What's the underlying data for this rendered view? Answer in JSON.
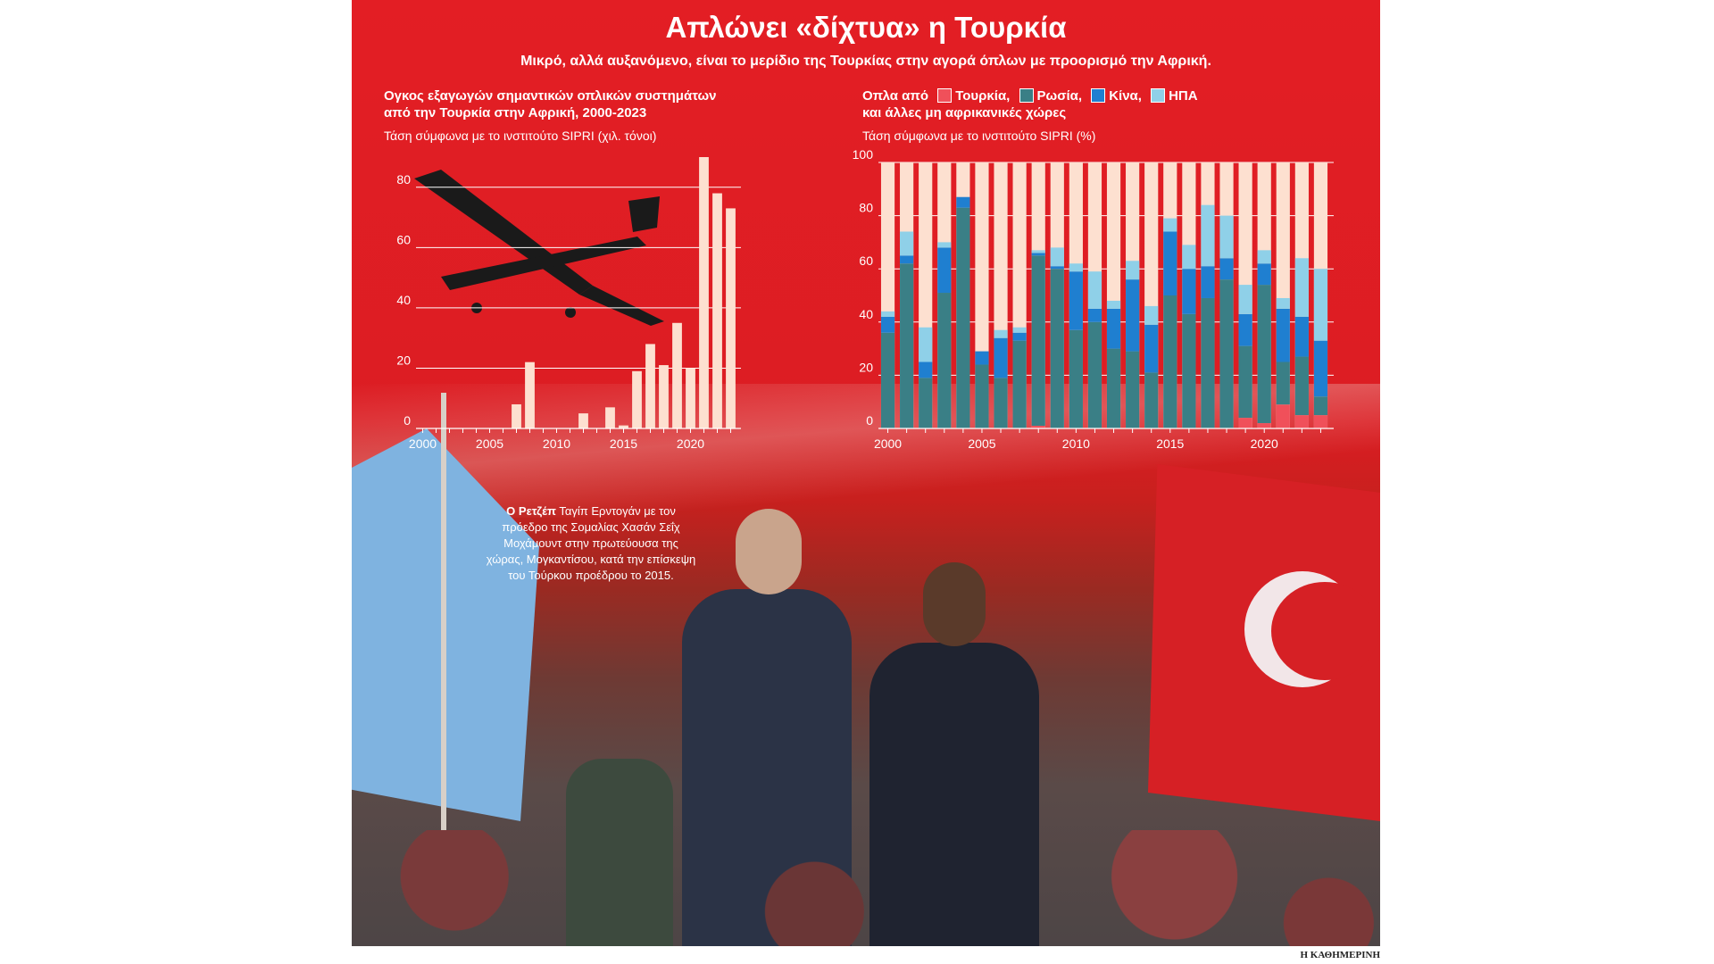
{
  "header": {
    "title": "Απλώνει «δίχτυα» η Τουρκία",
    "subtitle": "Μικρό, αλλά αυξανόμενο, είναι το μερίδιο της Τουρκίας στην αγορά όπλων με προορισμό την Αφρική."
  },
  "left_chart_text": {
    "title_line1": "Ογκος εξαγωγών σημαντικών οπλικών συστημάτων",
    "title_line2": "από την Τουρκία στην Αφρική, 2000-2023",
    "note": "Τάση σύμφωνα με το ινστιτούτο SIPRI (χιλ. τόνοι)"
  },
  "right_chart_text": {
    "title_prefix": "Οπλα από",
    "title_line2": "και άλλες μη αφρικανικές χώρες",
    "note": "Τάση σύμφωνα με το ινστιτούτο SIPRI (%)",
    "legend": [
      {
        "label": "Τουρκία,",
        "color": "#f0505a"
      },
      {
        "label": "Ρωσία,",
        "color": "#3a7f86"
      },
      {
        "label": "Κίνα,",
        "color": "#1f7fd0"
      },
      {
        "label": "ΗΠΑ",
        "color": "#8fd0e8"
      }
    ]
  },
  "caption": {
    "bold": "Ο Ρετζέπ",
    "rest": "Ταγίπ Ερντογάν με τον πρόεδρο της Σομαλίας Χασάν Σεΐχ Μοχάμουντ στην πρωτεύουσα της χώρας, Μογκαντίσου, κατά την επίσκεψη του Τούρκου προέδρου το 2015."
  },
  "footer": {
    "source": "Η ΚΑΘΗΜΕΡΙΝΗ"
  },
  "chart_data": [
    {
      "type": "bar",
      "xlabel": "",
      "ylabel": "",
      "xlim": [
        2000,
        2023
      ],
      "ylim": [
        0,
        90
      ],
      "yticks": [
        0,
        20,
        40,
        60,
        80
      ],
      "xticks": [
        2000,
        2005,
        2010,
        2015,
        2020
      ],
      "grid": true,
      "x": [
        2000,
        2001,
        2002,
        2003,
        2004,
        2005,
        2006,
        2007,
        2008,
        2009,
        2010,
        2011,
        2012,
        2013,
        2014,
        2015,
        2016,
        2017,
        2018,
        2019,
        2020,
        2021,
        2022,
        2023
      ],
      "values": [
        0,
        0,
        0,
        0,
        0,
        0,
        0,
        8,
        22,
        0,
        0,
        0,
        5,
        0,
        7,
        1,
        19,
        28,
        21,
        35,
        20,
        90,
        78,
        73
      ],
      "color": "#fde0d0"
    },
    {
      "type": "bar",
      "stacked": true,
      "xlabel": "",
      "ylabel": "",
      "ylim": [
        0,
        100
      ],
      "yticks": [
        0,
        20,
        40,
        60,
        80,
        100
      ],
      "xticks": [
        2000,
        2005,
        2010,
        2015,
        2020
      ],
      "grid": true,
      "x": [
        2000,
        2001,
        2002,
        2003,
        2004,
        2005,
        2006,
        2007,
        2008,
        2009,
        2010,
        2011,
        2012,
        2013,
        2014,
        2015,
        2016,
        2017,
        2018,
        2019,
        2020,
        2021,
        2022,
        2023
      ],
      "remainder_color": "#fde0d0",
      "series": [
        {
          "name": "Τουρκία",
          "color": "#f0505a",
          "values": [
            0,
            0,
            0,
            0,
            0,
            0,
            0,
            0,
            1,
            0,
            0,
            0,
            0,
            0,
            0,
            0,
            0,
            0,
            0,
            4,
            2,
            9,
            5,
            5
          ]
        },
        {
          "name": "Ρωσία",
          "color": "#3a7f86",
          "values": [
            36,
            62,
            19,
            51,
            83,
            24,
            19,
            33,
            64,
            60,
            37,
            40,
            30,
            29,
            21,
            50,
            43,
            49,
            56,
            27,
            52,
            16,
            22,
            7
          ]
        },
        {
          "name": "Κίνα",
          "color": "#1f7fd0",
          "values": [
            6,
            3,
            6,
            17,
            4,
            5,
            15,
            3,
            1,
            1,
            22,
            5,
            15,
            27,
            18,
            24,
            17,
            12,
            8,
            12,
            8,
            20,
            15,
            21
          ]
        },
        {
          "name": "ΗΠΑ",
          "color": "#8fd0e8",
          "values": [
            2,
            9,
            13,
            2,
            0,
            0,
            3,
            2,
            1,
            7,
            3,
            14,
            3,
            7,
            7,
            5,
            9,
            23,
            16,
            11,
            5,
            4,
            22,
            27
          ]
        }
      ]
    }
  ]
}
